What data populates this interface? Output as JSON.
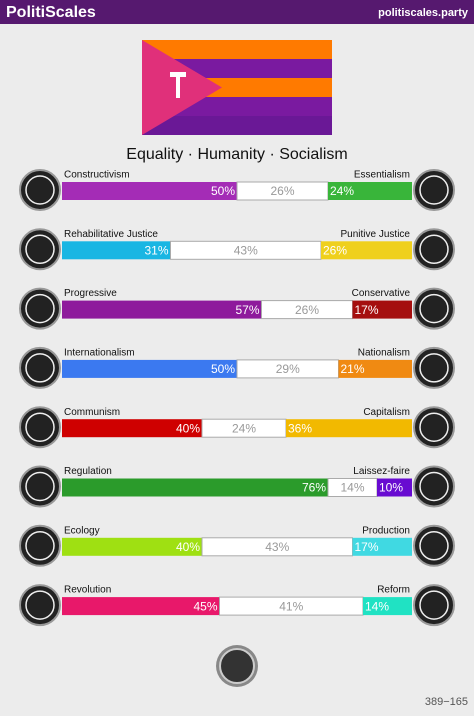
{
  "header": {
    "title": "PolitiScales",
    "site": "politiscales.party"
  },
  "motto": "Equality · Humanity · Socialism",
  "axes": [
    {
      "left": "Constructivism",
      "right": "Essentialism",
      "values": [
        50,
        26,
        24
      ],
      "value_labels": [
        "50%",
        "26%",
        "24%"
      ],
      "colors": [
        "#a42cb6",
        "#39b53a"
      ]
    },
    {
      "left": "Rehabilitative Justice",
      "right": "Punitive Justice",
      "values": [
        31,
        43,
        26
      ],
      "value_labels": [
        "31%",
        "43%",
        "26%"
      ],
      "colors": [
        "#19b6e3",
        "#efd01c"
      ]
    },
    {
      "left": "Progressive",
      "right": "Conservative",
      "values": [
        57,
        26,
        17
      ],
      "value_labels": [
        "57%",
        "26%",
        "17%"
      ],
      "colors": [
        "#8e1a9c",
        "#a50f0f"
      ]
    },
    {
      "left": "Internationalism",
      "right": "Nationalism",
      "values": [
        50,
        29,
        21
      ],
      "value_labels": [
        "50%",
        "29%",
        "21%"
      ],
      "colors": [
        "#3b79f0",
        "#f08a12"
      ]
    },
    {
      "left": "Communism",
      "right": "Capitalism",
      "values": [
        40,
        24,
        36
      ],
      "value_labels": [
        "40%",
        "24%",
        "36%"
      ],
      "colors": [
        "#cf0000",
        "#f2b900"
      ]
    },
    {
      "left": "Regulation",
      "right": "Laissez-faire",
      "values": [
        76,
        14,
        10
      ],
      "value_labels": [
        "76%",
        "14%",
        "10%"
      ],
      "colors": [
        "#2b9b2b",
        "#680bd1"
      ]
    },
    {
      "left": "Ecology",
      "right": "Production",
      "values": [
        40,
        43,
        17
      ],
      "value_labels": [
        "40%",
        "43%",
        "17%"
      ],
      "colors": [
        "#9fe012",
        "#40d9e2"
      ]
    },
    {
      "left": "Revolution",
      "right": "Reform",
      "values": [
        45,
        41,
        14
      ],
      "value_labels": [
        "45%",
        "41%",
        "14%"
      ],
      "colors": [
        "#e8186a",
        "#20e2c3"
      ]
    }
  ],
  "footer": "389−165"
}
